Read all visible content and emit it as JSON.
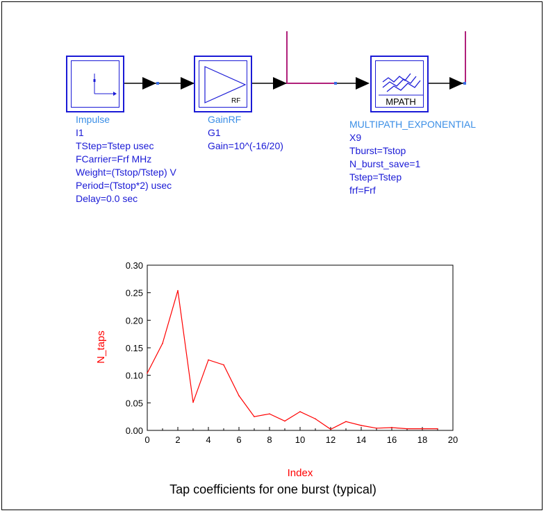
{
  "components": [
    {
      "id": "impulse",
      "icon": "impulse-source-icon",
      "lines": [
        "Impulse",
        "I1",
        "TStep=Tstep usec",
        "FCarrier=Frf MHz",
        "Weight=(Tstop/Tstep) V",
        "Period=(Tstop*2) usec",
        "Delay=0.0 sec"
      ]
    },
    {
      "id": "gainrf",
      "icon": "amplifier-triangle-icon",
      "icon_text": "RF",
      "lines": [
        "GainRF",
        "G1",
        "Gain=10^(-16/20)"
      ]
    },
    {
      "id": "multipath",
      "icon": "multipath-icon",
      "icon_text": "MPATH",
      "lines": [
        "MULTIPATH_EXPONENTIAL",
        "X9",
        "Tburst=Tstop",
        "N_burst_save=1",
        "Tstep=Tstep",
        "frf=Frf"
      ]
    }
  ],
  "colors": {
    "component_blue": "#1a1ad6",
    "name_blue": "#3a8ee6",
    "wire_magenta": "#b0207a",
    "plot_red": "#ff0000"
  },
  "chart_data": {
    "type": "line",
    "title": "",
    "xlabel": "Index",
    "ylabel": "N_taps",
    "xlim": [
      0,
      20
    ],
    "ylim": [
      0,
      0.3
    ],
    "x_ticks": [
      "0",
      "2",
      "4",
      "6",
      "8",
      "10",
      "12",
      "14",
      "16",
      "18",
      "20"
    ],
    "y_ticks": [
      "0.00",
      "0.05",
      "0.10",
      "0.15",
      "0.20",
      "0.25",
      "0.30"
    ],
    "x": [
      0,
      1,
      2,
      3,
      4,
      5,
      6,
      7,
      8,
      9,
      10,
      11,
      12,
      13,
      14,
      15,
      16,
      17,
      18,
      19
    ],
    "y": [
      0.104,
      0.158,
      0.254,
      0.051,
      0.128,
      0.119,
      0.063,
      0.025,
      0.03,
      0.017,
      0.034,
      0.021,
      0.002,
      0.016,
      0.009,
      0.004,
      0.005,
      0.003,
      0.003,
      0.003
    ],
    "grid": false
  },
  "caption": "Tap coefficients for one burst (typical)"
}
